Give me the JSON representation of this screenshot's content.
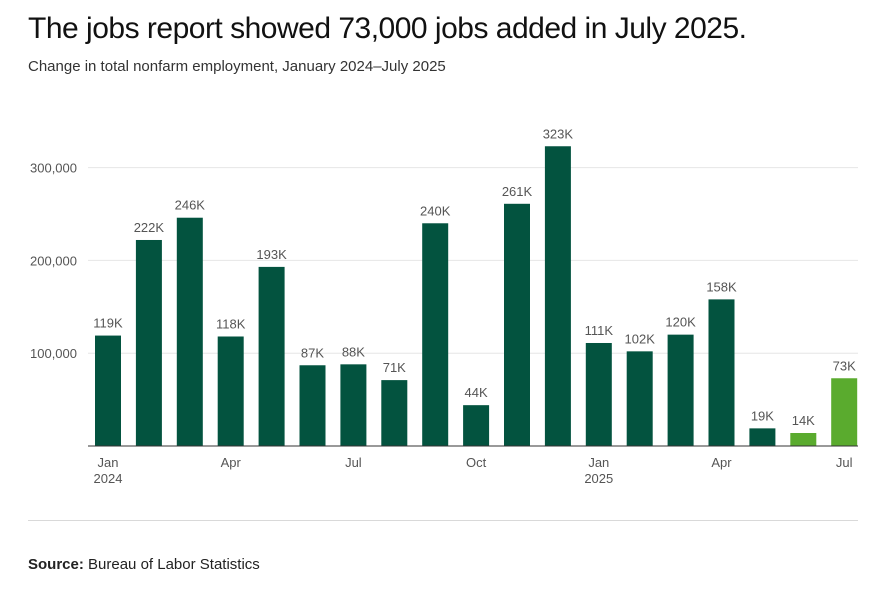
{
  "header": {
    "title": "The jobs report showed 73,000 jobs added in July 2025.",
    "subtitle": "Change in total nonfarm employment, January 2024–July 2025"
  },
  "footer": {
    "source_label": "Source:",
    "source_text": "Bureau of Labor Statistics"
  },
  "colors": {
    "bar_primary": "#03533f",
    "bar_highlight": "#5aab2e",
    "gridline": "#e6e6e6",
    "baseline": "#333333"
  },
  "chart_data": {
    "type": "bar",
    "title": "The jobs report showed 73,000 jobs added in July 2025.",
    "subtitle": "Change in total nonfarm employment, January 2024–July 2025",
    "categories": [
      "Jan 2024",
      "Feb 2024",
      "Mar 2024",
      "Apr 2024",
      "May 2024",
      "Jun 2024",
      "Jul 2024",
      "Aug 2024",
      "Sep 2024",
      "Oct 2024",
      "Nov 2024",
      "Dec 2024",
      "Jan 2025",
      "Feb 2025",
      "Mar 2025",
      "Apr 2025",
      "May 2025",
      "Jun 2025",
      "Jul 2025"
    ],
    "values": [
      119000,
      222000,
      246000,
      118000,
      193000,
      87000,
      88000,
      71000,
      240000,
      44000,
      261000,
      323000,
      111000,
      102000,
      120000,
      158000,
      19000,
      14000,
      73000
    ],
    "value_labels": [
      "119K",
      "222K",
      "246K",
      "118K",
      "193K",
      "87K",
      "88K",
      "71K",
      "240K",
      "44K",
      "261K",
      "323K",
      "111K",
      "102K",
      "120K",
      "158K",
      "19K",
      "14K",
      "73K"
    ],
    "highlighted": [
      false,
      false,
      false,
      false,
      false,
      false,
      false,
      false,
      false,
      false,
      false,
      false,
      false,
      false,
      false,
      false,
      false,
      true,
      true
    ],
    "x_tick_labels": [
      {
        "index": 0,
        "lines": [
          "Jan",
          "2024"
        ]
      },
      {
        "index": 3,
        "lines": [
          "Apr"
        ]
      },
      {
        "index": 6,
        "lines": [
          "Jul"
        ]
      },
      {
        "index": 9,
        "lines": [
          "Oct"
        ]
      },
      {
        "index": 12,
        "lines": [
          "Jan",
          "2025"
        ]
      },
      {
        "index": 15,
        "lines": [
          "Apr"
        ]
      },
      {
        "index": 18,
        "lines": [
          "Jul"
        ]
      }
    ],
    "y_ticks": [
      100000,
      200000,
      300000
    ],
    "y_tick_labels": [
      "100,000",
      "200,000",
      "300,000"
    ],
    "ylim": [
      0,
      340000
    ],
    "grid": true,
    "legend": "none",
    "xlabel": "",
    "ylabel": ""
  }
}
